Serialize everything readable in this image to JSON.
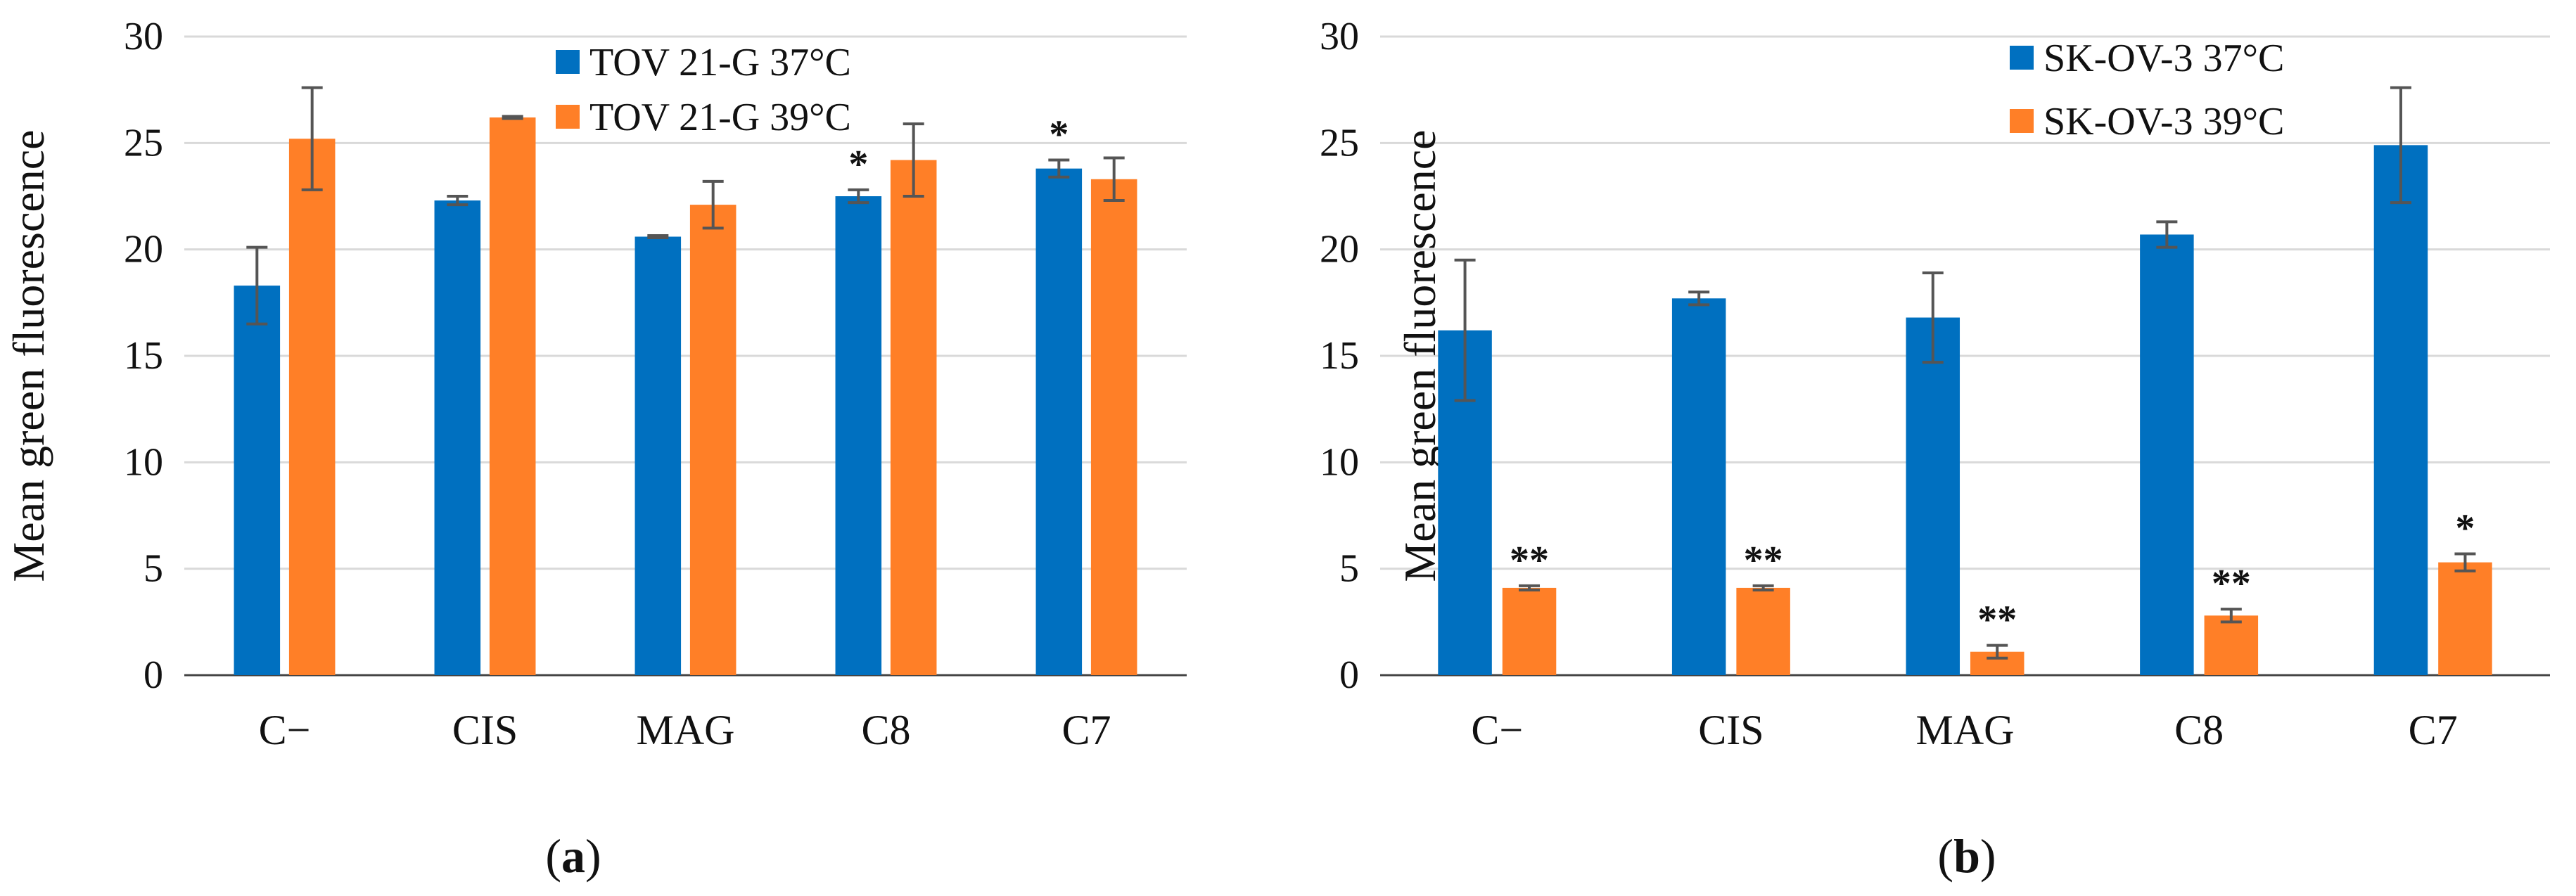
{
  "figure": {
    "panels": [
      {
        "key": "a",
        "label_prefix": "(",
        "label": "a",
        "label_suffix": ")"
      },
      {
        "key": "b",
        "label_prefix": "(",
        "label": "b",
        "label_suffix": ")"
      }
    ]
  },
  "colors": {
    "blue": "#0070C0",
    "orange": "#FF7F27",
    "grid": "#D9D9D9",
    "axis": "#444444",
    "error": "#555555"
  },
  "chart_data": [
    {
      "type": "bar",
      "panel": "a",
      "ylabel": "Mean green fluorescence",
      "xlabel": "",
      "ylim": [
        0,
        30
      ],
      "yticks": [
        0,
        5,
        10,
        15,
        20,
        25,
        30
      ],
      "grid": true,
      "legend_position": "top-center",
      "categories": [
        "C−",
        "CIS",
        "MAG",
        "C8",
        "C7"
      ],
      "series": [
        {
          "name": "TOV 21-G 37°C",
          "color": "#0070C0",
          "values": [
            18.3,
            22.3,
            20.6,
            22.5,
            23.8
          ],
          "errors": [
            1.8,
            0.2,
            0.05,
            0.3,
            0.4
          ],
          "annotations": [
            "",
            "",
            "",
            "*",
            "*"
          ]
        },
        {
          "name": "TOV 21-G 39°C",
          "color": "#FF7F27",
          "values": [
            25.2,
            26.2,
            22.1,
            24.2,
            23.3
          ],
          "errors": [
            2.4,
            0.05,
            1.1,
            1.7,
            1.0
          ],
          "annotations": [
            "",
            "",
            "",
            "",
            ""
          ]
        }
      ]
    },
    {
      "type": "bar",
      "panel": "b",
      "ylabel": "Mean green fluorescence",
      "xlabel": "",
      "ylim": [
        0,
        30
      ],
      "yticks": [
        0,
        5,
        10,
        15,
        20,
        25,
        30
      ],
      "grid": true,
      "legend_position": "top-center",
      "categories": [
        "C−",
        "CIS",
        "MAG",
        "C8",
        "C7"
      ],
      "series": [
        {
          "name": "SK-OV-3 37°C",
          "color": "#0070C0",
          "values": [
            16.2,
            17.7,
            16.8,
            20.7,
            24.9
          ],
          "errors": [
            3.3,
            0.3,
            2.1,
            0.6,
            2.7
          ],
          "annotations": [
            "",
            "",
            "",
            "",
            ""
          ]
        },
        {
          "name": "SK-OV-3 39°C",
          "color": "#FF7F27",
          "values": [
            4.1,
            4.1,
            1.1,
            2.8,
            5.3
          ],
          "errors": [
            0.1,
            0.1,
            0.3,
            0.3,
            0.4
          ],
          "annotations": [
            "**",
            "**",
            "**",
            "**",
            "*"
          ]
        }
      ]
    }
  ]
}
